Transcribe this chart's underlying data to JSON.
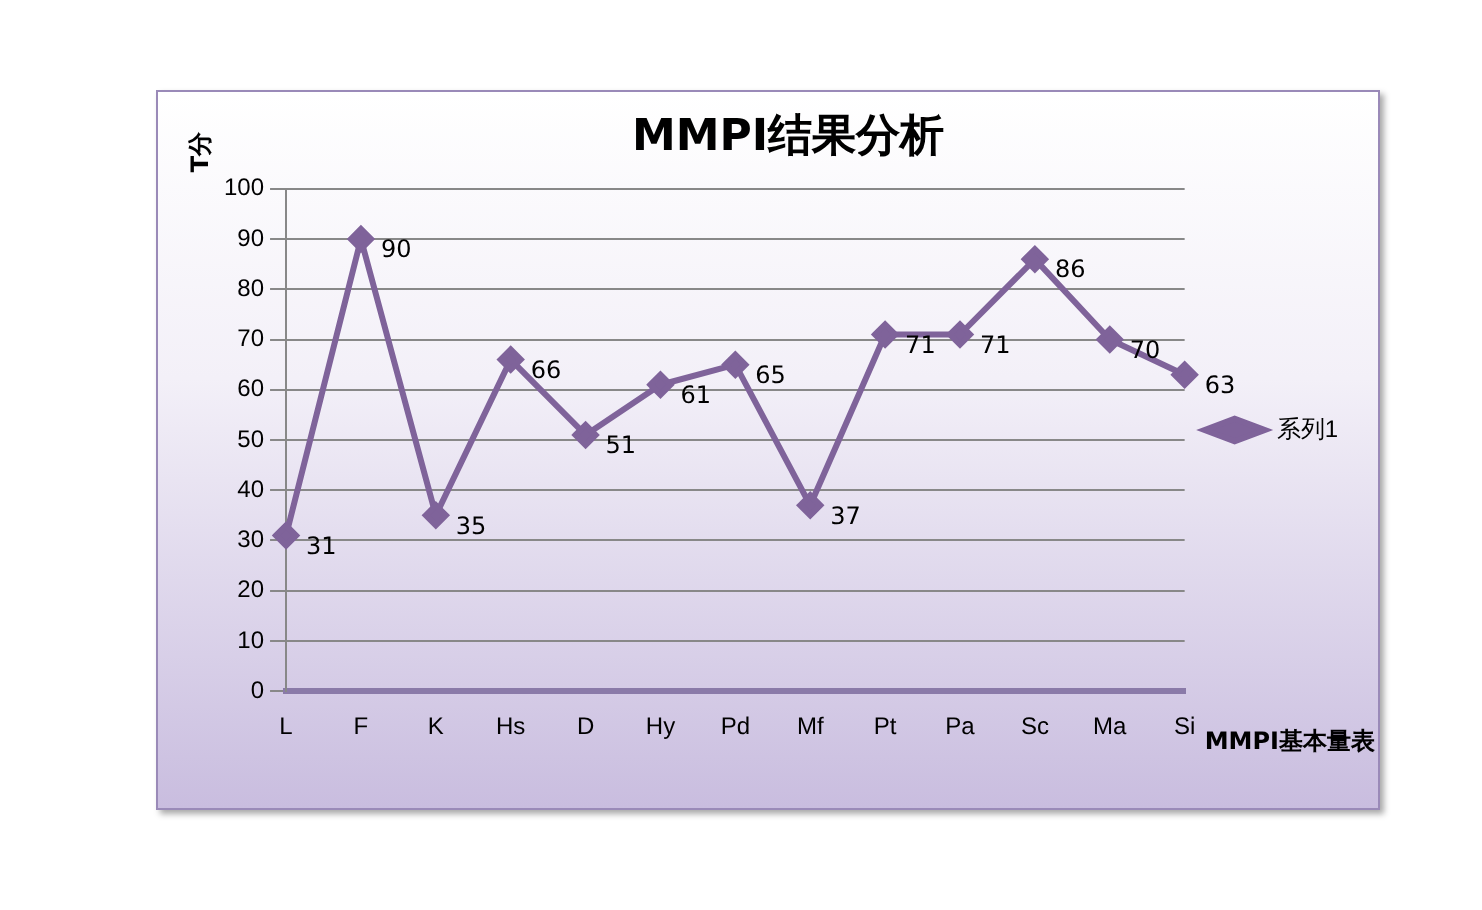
{
  "chart_data": {
    "type": "line",
    "title": "MMPI结果分析",
    "xlabel": "MMPI基本量表",
    "ylabel": "T分",
    "categories": [
      "L",
      "F",
      "K",
      "Hs",
      "D",
      "Hy",
      "Pd",
      "Mf",
      "Pt",
      "Pa",
      "Sc",
      "Ma",
      "Si"
    ],
    "series": [
      {
        "name": "系列1",
        "color": "#7f639a",
        "values": [
          31,
          90,
          35,
          66,
          51,
          61,
          65,
          37,
          71,
          71,
          86,
          70,
          63
        ]
      }
    ],
    "ylim": [
      0,
      100
    ],
    "yticks": [
      0,
      10,
      20,
      30,
      40,
      50,
      60,
      70,
      80,
      90,
      100
    ],
    "grid": "y",
    "legend": "right",
    "marker": "diamond",
    "line_style": "solid",
    "data_labels": true
  }
}
